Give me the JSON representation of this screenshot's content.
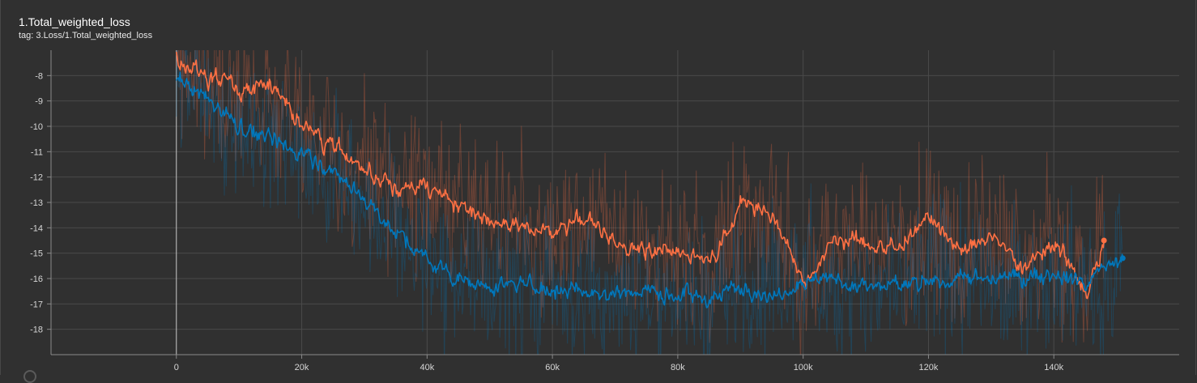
{
  "card": {
    "title": "1.Total_weighted_loss",
    "tag": "tag: 3.Loss/1.Total_weighted_loss"
  },
  "chart_data": {
    "type": "line",
    "title": "1.Total_weighted_loss",
    "subtitle": "tag: 3.Loss/1.Total_weighted_loss",
    "xlabel": "",
    "ylabel": "",
    "xlim": [
      -20000,
      160000
    ],
    "ylim": [
      -19,
      -7
    ],
    "x_ticks": [
      0,
      20000,
      40000,
      60000,
      80000,
      100000,
      120000,
      140000
    ],
    "x_tick_labels": [
      "0",
      "20k",
      "40k",
      "60k",
      "80k",
      "100k",
      "120k",
      "140k"
    ],
    "y_ticks": [
      -18,
      -17,
      -16,
      -15,
      -14,
      -13,
      -12,
      -11,
      -10,
      -9,
      -8
    ],
    "y_tick_labels": [
      "-18",
      "-17",
      "-16",
      "-15",
      "-14",
      "-13",
      "-12",
      "-11",
      "-10",
      "-9",
      "-8"
    ],
    "grid": true,
    "legend": "none",
    "raw_series_opacity": 0.28,
    "series": [
      {
        "color": "#ff7043",
        "x": [
          0,
          5000,
          10000,
          15000,
          20000,
          25000,
          30000,
          35000,
          40000,
          45000,
          50000,
          55000,
          60000,
          65000,
          70000,
          75000,
          80000,
          85000,
          90000,
          95000,
          100000,
          105000,
          110000,
          115000,
          120000,
          125000,
          130000,
          135000,
          140000,
          145000,
          148000
        ],
        "values": [
          -7.5,
          -8.0,
          -8.6,
          -8.3,
          -10.0,
          -10.8,
          -11.8,
          -12.5,
          -12.3,
          -13.2,
          -13.6,
          -14.0,
          -14.2,
          -13.6,
          -14.5,
          -15.0,
          -14.8,
          -15.4,
          -13.0,
          -13.5,
          -16.2,
          -14.4,
          -14.6,
          -14.8,
          -13.6,
          -15.0,
          -14.3,
          -15.6,
          -14.6,
          -16.5,
          -14.5
        ],
        "last_point": {
          "x": 148000,
          "y": -14.5
        }
      },
      {
        "color": "#0077bb",
        "x": [
          0,
          5000,
          10000,
          15000,
          20000,
          25000,
          30000,
          35000,
          40000,
          45000,
          50000,
          55000,
          60000,
          65000,
          70000,
          75000,
          80000,
          85000,
          90000,
          95000,
          100000,
          105000,
          110000,
          115000,
          120000,
          125000,
          130000,
          135000,
          140000,
          145000,
          151000
        ],
        "values": [
          -8.0,
          -9.0,
          -10.0,
          -10.6,
          -11.0,
          -11.8,
          -12.9,
          -14.2,
          -15.3,
          -16.0,
          -16.3,
          -16.2,
          -16.4,
          -16.5,
          -16.6,
          -16.5,
          -16.7,
          -16.8,
          -16.3,
          -16.6,
          -16.0,
          -16.1,
          -16.4,
          -16.3,
          -16.1,
          -15.9,
          -16.1,
          -16.0,
          -15.8,
          -16.2,
          -15.2
        ],
        "last_point": {
          "x": 151000,
          "y": -15.2
        }
      }
    ]
  }
}
